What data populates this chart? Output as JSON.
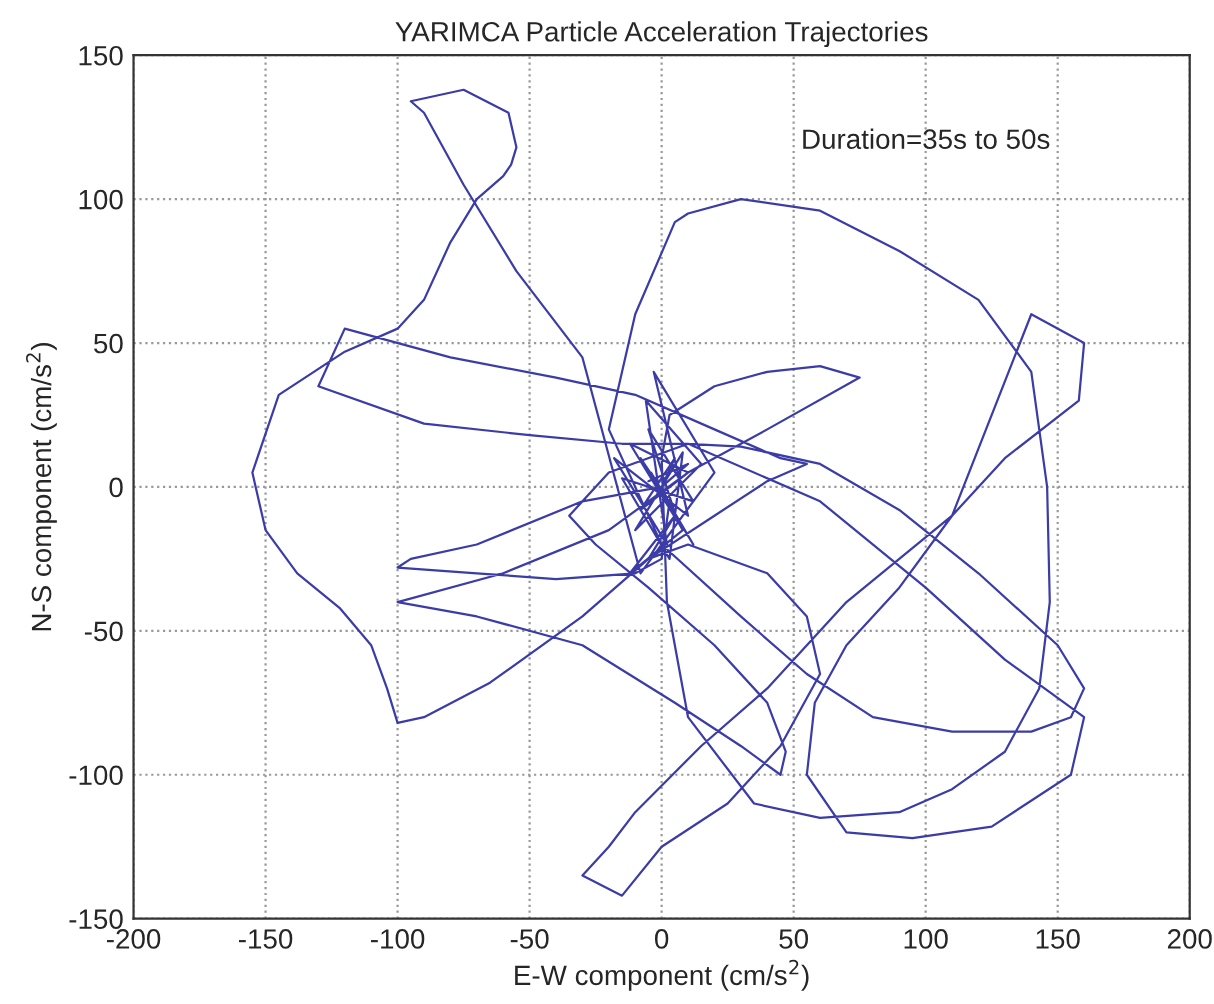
{
  "chart_data": {
    "type": "line",
    "title": "YARIMCA Particle Acceleration Trajectories",
    "xlabel": "E-W component (cm/s$^{2}$)",
    "ylabel": "N-S component (cm/s$^{2}$)",
    "annotations": [
      "Duration=35s to 50s"
    ],
    "xlim": [
      -200,
      200
    ],
    "ylim": [
      -150,
      150
    ],
    "xticks": [
      -200,
      -150,
      -100,
      -50,
      0,
      50,
      100,
      150,
      200
    ],
    "yticks": [
      -150,
      -100,
      -50,
      0,
      50,
      100,
      150
    ],
    "grid": true,
    "marker": "none",
    "line_style": "solid",
    "series": [
      {
        "color": "#3c3ca8",
        "x": [
          0,
          5,
          -8,
          10,
          -12,
          6,
          -5,
          12,
          -15,
          3,
          8,
          -10,
          15,
          -6,
          2,
          -18,
          10,
          -3,
          20,
          -8,
          -30,
          -55,
          -75,
          -90,
          -95,
          -75,
          -58,
          -55,
          -57,
          -60,
          -70,
          -80,
          -90,
          -100,
          -120,
          -145,
          -155,
          -150,
          -138,
          -122,
          -110,
          -104,
          -100,
          -90,
          -65,
          -30,
          -5,
          20,
          40,
          55,
          45,
          20,
          -10,
          -40,
          -80,
          -120,
          -130,
          -90,
          -50,
          -15,
          10,
          30,
          60,
          90,
          120,
          150,
          160,
          155,
          140,
          110,
          80,
          55,
          30,
          0,
          -20,
          -10,
          5,
          10,
          30,
          60,
          90,
          120,
          140,
          146,
          147,
          143,
          130,
          110,
          90,
          60,
          35,
          10,
          2,
          0,
          3,
          20,
          40,
          60,
          75,
          40,
          10,
          -20,
          -60,
          -100,
          -70,
          -30,
          5,
          30,
          45,
          47,
          40,
          20,
          -5,
          -25,
          -35,
          -20,
          10,
          60,
          100,
          130,
          160,
          155,
          125,
          95,
          70,
          55,
          58,
          70,
          90,
          110,
          130,
          158,
          160,
          140,
          110,
          70,
          40,
          15,
          -10,
          -20,
          -30,
          -15,
          0,
          25,
          45,
          60,
          55,
          40,
          10,
          -5,
          5,
          -12,
          8,
          -4,
          12,
          -8,
          3,
          0,
          -10,
          -40,
          -70,
          -100,
          -95,
          -70,
          -30,
          0,
          10,
          -5
        ],
        "values": [
          0,
          10,
          -8,
          5,
          15,
          -12,
          20,
          -5,
          3,
          -25,
          12,
          -15,
          8,
          30,
          -20,
          10,
          -10,
          40,
          5,
          -30,
          45,
          75,
          105,
          130,
          134,
          138,
          130,
          118,
          112,
          108,
          100,
          85,
          65,
          55,
          47,
          32,
          5,
          -15,
          -30,
          -42,
          -55,
          -70,
          -82,
          -80,
          -68,
          -45,
          -25,
          -10,
          2,
          8,
          10,
          20,
          32,
          38,
          45,
          55,
          35,
          22,
          18,
          15,
          15,
          14,
          8,
          -8,
          -30,
          -55,
          -70,
          -80,
          -85,
          -85,
          -80,
          -65,
          -45,
          -20,
          20,
          60,
          92,
          95,
          100,
          96,
          82,
          65,
          40,
          0,
          -40,
          -70,
          -92,
          -105,
          -113,
          -115,
          -110,
          -80,
          -40,
          10,
          25,
          35,
          40,
          42,
          38,
          20,
          5,
          -15,
          -30,
          -40,
          -45,
          -55,
          -75,
          -90,
          -100,
          -92,
          -75,
          -55,
          -35,
          -20,
          -10,
          5,
          15,
          -5,
          -35,
          -60,
          -80,
          -100,
          -118,
          -122,
          -120,
          -100,
          -75,
          -55,
          -35,
          -10,
          10,
          30,
          50,
          60,
          -10,
          -40,
          -70,
          -90,
          -113,
          -125,
          -135,
          -142,
          -125,
          -110,
          -90,
          -65,
          -45,
          -30,
          -20,
          -25,
          -10,
          -30,
          -15,
          5,
          -20,
          10,
          -5,
          -25,
          -30,
          -32,
          -30,
          -28,
          -25,
          -20,
          -5,
          0,
          8,
          2
        ]
      }
    ]
  }
}
